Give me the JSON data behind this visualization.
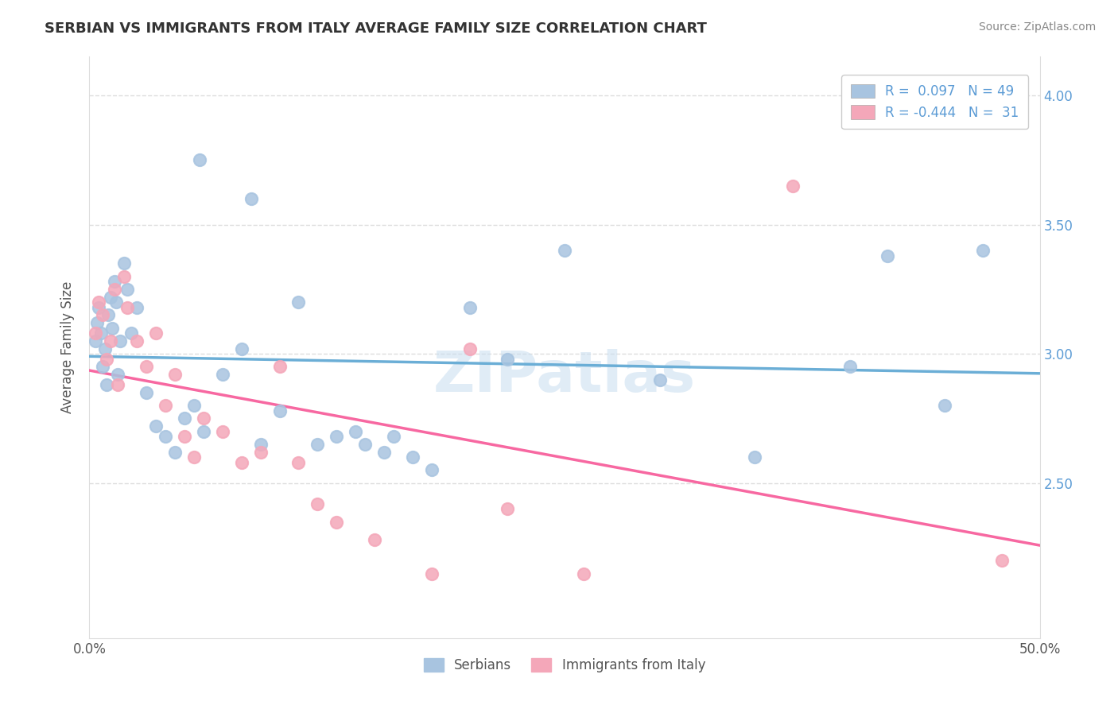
{
  "title": "SERBIAN VS IMMIGRANTS FROM ITALY AVERAGE FAMILY SIZE CORRELATION CHART",
  "source": "Source: ZipAtlas.com",
  "ylabel": "Average Family Size",
  "xlim": [
    0.0,
    50.0
  ],
  "ylim": [
    1.9,
    4.15
  ],
  "yticks_right": [
    2.5,
    3.0,
    3.5,
    4.0
  ],
  "legend": {
    "serbian_R": "0.097",
    "serbian_N": "49",
    "italy_R": "-0.444",
    "italy_N": "31"
  },
  "serbian_color": "#a8c4e0",
  "italy_color": "#f4a7b9",
  "trend_serbian_color": "#6baed6",
  "trend_italy_color": "#f768a1",
  "serbian_points": [
    [
      0.3,
      3.05
    ],
    [
      0.4,
      3.12
    ],
    [
      0.5,
      3.18
    ],
    [
      0.6,
      3.08
    ],
    [
      0.7,
      2.95
    ],
    [
      0.8,
      3.02
    ],
    [
      0.9,
      2.88
    ],
    [
      1.0,
      3.15
    ],
    [
      1.1,
      3.22
    ],
    [
      1.2,
      3.1
    ],
    [
      1.3,
      3.28
    ],
    [
      1.4,
      3.2
    ],
    [
      1.5,
      2.92
    ],
    [
      1.6,
      3.05
    ],
    [
      1.8,
      3.35
    ],
    [
      2.0,
      3.25
    ],
    [
      2.2,
      3.08
    ],
    [
      2.5,
      3.18
    ],
    [
      3.0,
      2.85
    ],
    [
      3.5,
      2.72
    ],
    [
      4.0,
      2.68
    ],
    [
      4.5,
      2.62
    ],
    [
      5.0,
      2.75
    ],
    [
      5.5,
      2.8
    ],
    [
      6.0,
      2.7
    ],
    [
      7.0,
      2.92
    ],
    [
      8.0,
      3.02
    ],
    [
      9.0,
      2.65
    ],
    [
      10.0,
      2.78
    ],
    [
      12.0,
      2.65
    ],
    [
      13.0,
      2.68
    ],
    [
      14.0,
      2.7
    ],
    [
      15.5,
      2.62
    ],
    [
      16.0,
      2.68
    ],
    [
      17.0,
      2.6
    ],
    [
      20.0,
      3.18
    ],
    [
      22.0,
      2.98
    ],
    [
      25.0,
      3.4
    ],
    [
      30.0,
      2.9
    ],
    [
      35.0,
      2.6
    ],
    [
      5.8,
      3.75
    ],
    [
      8.5,
      3.6
    ],
    [
      11.0,
      3.2
    ],
    [
      14.5,
      2.65
    ],
    [
      18.0,
      2.55
    ],
    [
      40.0,
      2.95
    ],
    [
      42.0,
      3.38
    ],
    [
      45.0,
      2.8
    ],
    [
      47.0,
      3.4
    ]
  ],
  "italy_points": [
    [
      0.3,
      3.08
    ],
    [
      0.5,
      3.2
    ],
    [
      0.7,
      3.15
    ],
    [
      0.9,
      2.98
    ],
    [
      1.1,
      3.05
    ],
    [
      1.3,
      3.25
    ],
    [
      1.5,
      2.88
    ],
    [
      1.8,
      3.3
    ],
    [
      2.0,
      3.18
    ],
    [
      2.5,
      3.05
    ],
    [
      3.0,
      2.95
    ],
    [
      3.5,
      3.08
    ],
    [
      4.0,
      2.8
    ],
    [
      4.5,
      2.92
    ],
    [
      5.0,
      2.68
    ],
    [
      5.5,
      2.6
    ],
    [
      6.0,
      2.75
    ],
    [
      7.0,
      2.7
    ],
    [
      8.0,
      2.58
    ],
    [
      9.0,
      2.62
    ],
    [
      10.0,
      2.95
    ],
    [
      11.0,
      2.58
    ],
    [
      12.0,
      2.42
    ],
    [
      13.0,
      2.35
    ],
    [
      15.0,
      2.28
    ],
    [
      18.0,
      2.15
    ],
    [
      20.0,
      3.02
    ],
    [
      22.0,
      2.4
    ],
    [
      26.0,
      2.15
    ],
    [
      37.0,
      3.65
    ],
    [
      48.0,
      2.2
    ]
  ],
  "grid_color": "#dddddd",
  "background_color": "#ffffff"
}
